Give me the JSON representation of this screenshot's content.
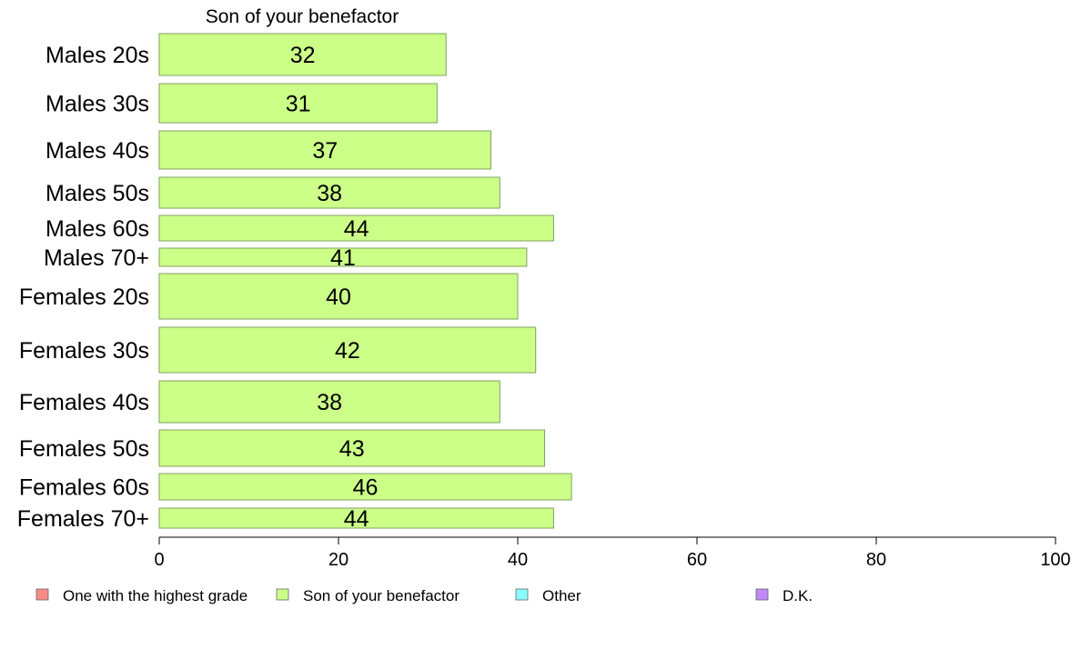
{
  "chart_data": {
    "type": "bar",
    "orientation": "horizontal",
    "title": "Son of your benefactor",
    "xlim": [
      0,
      100
    ],
    "xticks": [
      0,
      20,
      40,
      60,
      80,
      100
    ],
    "categories": [
      "Males 20s",
      "Males 30s",
      "Males 40s",
      "Males 50s",
      "Males 60s",
      "Males 70+",
      "Females 20s",
      "Females 30s",
      "Females 40s",
      "Females 50s",
      "Females 60s",
      "Females 70+"
    ],
    "values": [
      32,
      31,
      37,
      38,
      44,
      41,
      40,
      42,
      38,
      43,
      46,
      44
    ],
    "bar_color": "#ccff88",
    "bar_stroke": "#7fa060",
    "grid": false,
    "legend": {
      "placement": "bottom",
      "entries": [
        {
          "name": "One with the highest grade",
          "color": "#f88c88"
        },
        {
          "name": "Son of your benefactor",
          "color": "#ccff88"
        },
        {
          "name": "Other",
          "color": "#88ffff"
        },
        {
          "name": "D.K.",
          "color": "#c088f8"
        }
      ]
    }
  }
}
